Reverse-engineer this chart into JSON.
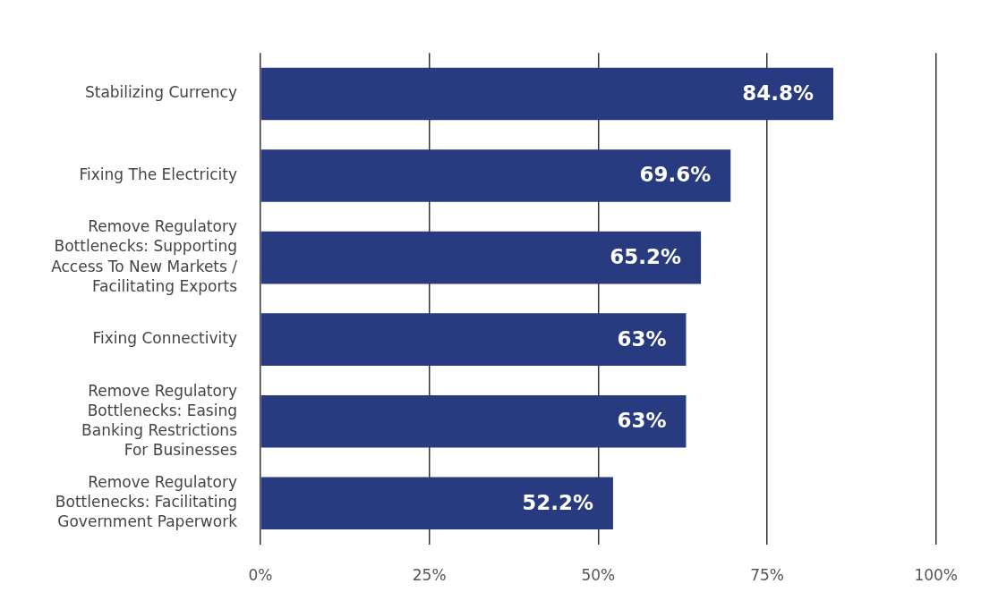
{
  "chart_data": {
    "type": "bar",
    "orientation": "horizontal",
    "categories": [
      "Stabilizing Currency",
      "Fixing The Electricity",
      "Remove Regulatory\nBottlenecks: Supporting\nAccess To New Markets /\nFacilitating Exports",
      "Fixing Connectivity",
      "Remove Regulatory\nBottlenecks: Easing\nBanking Restrictions\nFor Businesses",
      "Remove Regulatory\nBottlenecks: Facilitating\nGovernment Paperwork"
    ],
    "values": [
      84.8,
      69.6,
      65.2,
      63,
      63,
      52.2
    ],
    "value_labels": [
      "84.8%",
      "69.6%",
      "65.2%",
      "63%",
      "63%",
      "52.2%"
    ],
    "color": "#283a80",
    "xlim": [
      0,
      100
    ],
    "xticks": [
      {
        "value": 0,
        "label": "0%"
      },
      {
        "value": 25,
        "label": "25%"
      },
      {
        "value": 50,
        "label": "50%"
      },
      {
        "value": 75,
        "label": "75%"
      },
      {
        "value": 100,
        "label": "100%"
      }
    ],
    "grid": "x",
    "legend": false
  }
}
